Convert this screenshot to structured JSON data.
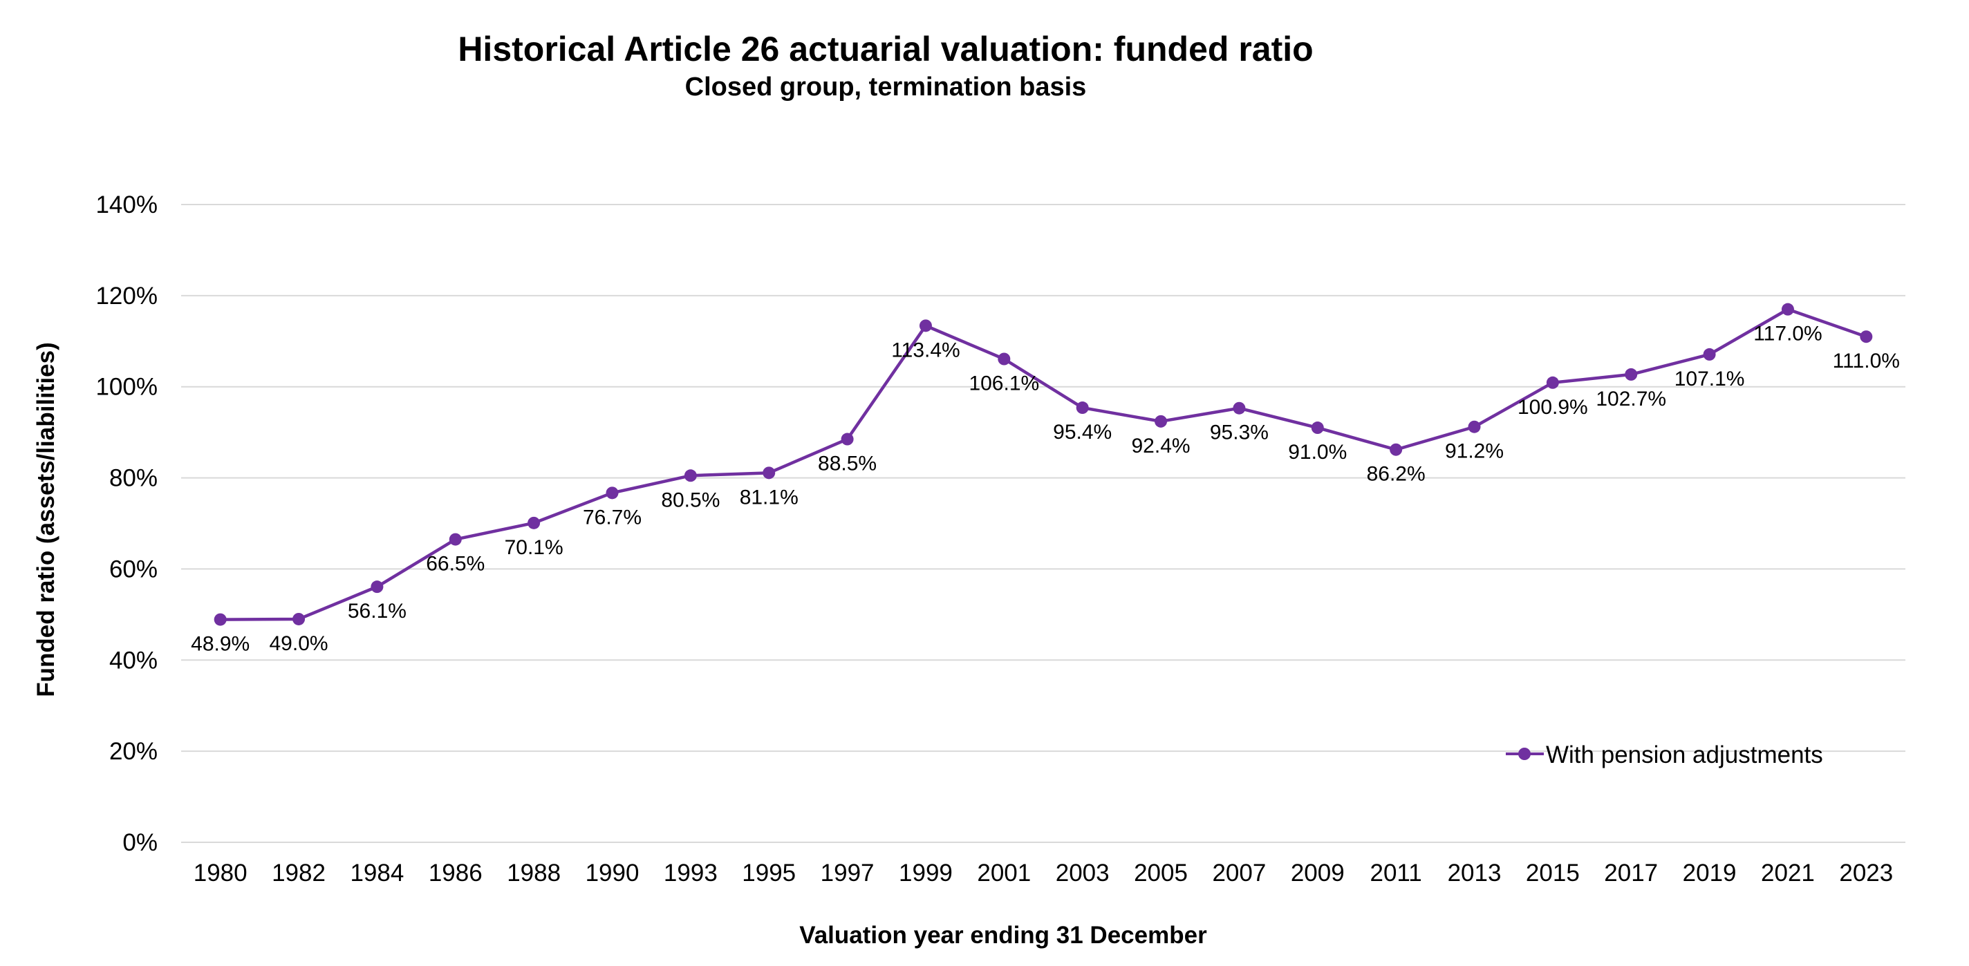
{
  "chart_data": {
    "type": "line",
    "title": "Historical Article 26 actuarial valuation: funded ratio",
    "subtitle": "Closed group, termination basis",
    "xlabel": "Valuation year ending 31 December",
    "ylabel": "Funded ratio (assets/liabilities)",
    "categories": [
      "1980",
      "1982",
      "1984",
      "1986",
      "1988",
      "1990",
      "1993",
      "1995",
      "1997",
      "1999",
      "2001",
      "2003",
      "2005",
      "2007",
      "2009",
      "2011",
      "2013",
      "2015",
      "2017",
      "2019",
      "2021",
      "2023"
    ],
    "ylim": [
      0,
      140
    ],
    "yticks": [
      0,
      20,
      40,
      60,
      80,
      100,
      120,
      140
    ],
    "ytick_labels": [
      "0%",
      "20%",
      "40%",
      "60%",
      "80%",
      "100%",
      "120%",
      "140%"
    ],
    "grid": true,
    "legend_position": "bottom-right",
    "series": [
      {
        "name": "With pension adjustments",
        "color": "#7030a0",
        "values": [
          48.9,
          49.0,
          56.1,
          66.5,
          70.1,
          76.7,
          80.5,
          81.1,
          88.5,
          113.4,
          106.1,
          95.4,
          92.4,
          95.3,
          91.0,
          86.2,
          91.2,
          100.9,
          102.7,
          107.1,
          117.0,
          111.0
        ],
        "data_labels": [
          "48.9%",
          "49.0%",
          "56.1%",
          "66.5%",
          "70.1%",
          "76.7%",
          "80.5%",
          "81.1%",
          "88.5%",
          "113.4%",
          "106.1%",
          "95.4%",
          "92.4%",
          "95.3%",
          "91.0%",
          "86.2%",
          "91.2%",
          "100.9%",
          "102.7%",
          "107.1%",
          "117.0%",
          "111.0%"
        ]
      }
    ]
  }
}
